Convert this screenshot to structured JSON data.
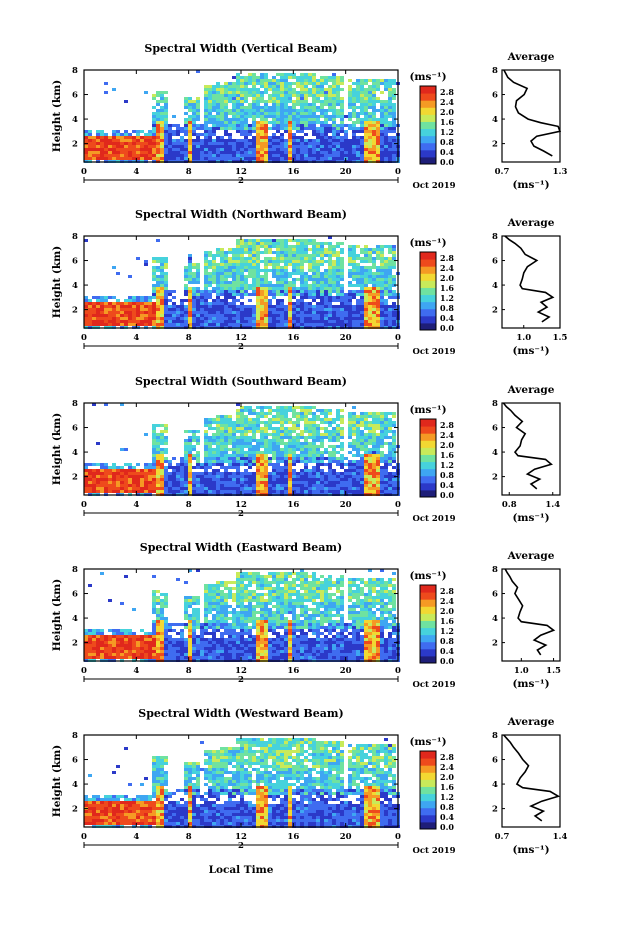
{
  "colors": {
    "scale": [
      "#1e1e78",
      "#2b39c8",
      "#3f6cf0",
      "#3ea6f2",
      "#46d2dc",
      "#6fe2a0",
      "#c8ea5a",
      "#f2d832",
      "#f59a24",
      "#ee4a1c",
      "#e0281c"
    ],
    "avg_line": "#000000"
  },
  "chart_data": [
    {
      "type": "heatmap",
      "title": "Spectral Width (Vertical Beam)",
      "ylabel": "Height (km)",
      "xlabel": "",
      "x_ticks": [
        "0",
        "4",
        "8",
        "12",
        "16",
        "20",
        "0"
      ],
      "x_sub": "2",
      "date_label": "Oct 2019",
      "y_ticks": [
        "2",
        "4",
        "6",
        "8"
      ],
      "ylim": [
        0.5,
        8
      ],
      "xlim": [
        0,
        24
      ],
      "colorbar_label": "(ms⁻¹)",
      "colorbar_ticks": [
        "0.0",
        "0.4",
        "0.8",
        "1.2",
        "1.6",
        "2.0",
        "2.4",
        "2.8"
      ],
      "avg_title": "Average",
      "avg_x_ticks": [
        "0.7",
        "1.3"
      ],
      "avg_xlim": [
        0.7,
        1.3
      ],
      "avg_ylim": [
        0.5,
        8
      ],
      "avg_xlabel": "(ms⁻¹)",
      "avg_x": [
        1.22,
        1.13,
        1.03,
        1.0,
        1.06,
        1.3,
        1.28,
        1.1,
        0.97,
        0.87,
        0.84,
        0.85,
        0.93,
        0.96,
        0.82,
        0.76,
        0.74,
        0.72
      ],
      "avg_y": [
        1.0,
        1.4,
        1.8,
        2.2,
        2.6,
        3.0,
        3.4,
        3.7,
        4.0,
        4.5,
        5.0,
        5.5,
        6.0,
        6.5,
        7.0,
        7.4,
        7.7,
        8.0
      ]
    },
    {
      "type": "heatmap",
      "title": "Spectral Width (Northward Beam)",
      "ylabel": "Height (km)",
      "xlabel": "",
      "x_ticks": [
        "0",
        "4",
        "8",
        "12",
        "16",
        "20",
        "0"
      ],
      "x_sub": "2",
      "date_label": "Oct 2019",
      "y_ticks": [
        "2",
        "4",
        "6",
        "8"
      ],
      "ylim": [
        0.5,
        8
      ],
      "xlim": [
        0,
        24
      ],
      "colorbar_label": "(ms⁻¹)",
      "colorbar_ticks": [
        "0.0",
        "0.4",
        "0.8",
        "1.2",
        "1.6",
        "2.0",
        "2.4",
        "2.8"
      ],
      "avg_title": "Average",
      "avg_x_ticks": [
        "1.0",
        "1.5"
      ],
      "avg_xlim": [
        0.7,
        1.5
      ],
      "avg_ylim": [
        0.5,
        8
      ],
      "avg_xlabel": "(ms⁻¹)",
      "avg_x": [
        1.25,
        1.35,
        1.2,
        1.32,
        1.24,
        1.4,
        1.3,
        0.98,
        0.95,
        0.98,
        1.0,
        1.05,
        1.18,
        1.02,
        0.96,
        0.88,
        0.8,
        0.74
      ],
      "avg_y": [
        1.0,
        1.4,
        1.8,
        2.2,
        2.6,
        3.0,
        3.4,
        3.7,
        4.0,
        4.5,
        5.0,
        5.5,
        6.0,
        6.5,
        7.0,
        7.4,
        7.7,
        8.0
      ]
    },
    {
      "type": "heatmap",
      "title": "Spectral Width (Southward Beam)",
      "ylabel": "Height (km)",
      "xlabel": "",
      "x_ticks": [
        "0",
        "4",
        "8",
        "12",
        "16",
        "20",
        "0"
      ],
      "x_sub": "2",
      "date_label": "Oct 2019",
      "y_ticks": [
        "2",
        "4",
        "6",
        "8"
      ],
      "ylim": [
        0.5,
        8
      ],
      "xlim": [
        0,
        24
      ],
      "colorbar_label": "(ms⁻¹)",
      "colorbar_ticks": [
        "0.0",
        "0.4",
        "0.8",
        "1.2",
        "1.6",
        "2.0",
        "2.4",
        "2.8"
      ],
      "avg_title": "Average",
      "avg_x_ticks": [
        "0.8",
        "1.4"
      ],
      "avg_xlim": [
        0.7,
        1.5
      ],
      "avg_ylim": [
        0.5,
        8
      ],
      "avg_xlabel": "(ms⁻¹)",
      "avg_x": [
        1.18,
        1.1,
        1.22,
        1.05,
        1.15,
        1.38,
        1.3,
        0.92,
        0.88,
        0.95,
        0.97,
        1.02,
        0.9,
        0.98,
        0.88,
        0.82,
        0.76,
        0.72
      ],
      "avg_y": [
        1.0,
        1.4,
        1.8,
        2.2,
        2.6,
        3.0,
        3.4,
        3.7,
        4.0,
        4.5,
        5.0,
        5.5,
        6.0,
        6.5,
        7.0,
        7.4,
        7.7,
        8.0
      ]
    },
    {
      "type": "heatmap",
      "title": "Spectral Width (Eastward Beam)",
      "ylabel": "Height (km)",
      "xlabel": "",
      "x_ticks": [
        "0",
        "4",
        "8",
        "12",
        "16",
        "20",
        "0"
      ],
      "x_sub": "2",
      "date_label": "Oct 2019",
      "y_ticks": [
        "2",
        "4",
        "6",
        "8"
      ],
      "ylim": [
        0.5,
        8
      ],
      "xlim": [
        0,
        24
      ],
      "colorbar_label": "(ms⁻¹)",
      "colorbar_ticks": [
        "0.0",
        "0.4",
        "0.8",
        "1.2",
        "1.6",
        "2.0",
        "2.4",
        "2.8"
      ],
      "avg_title": "Average",
      "avg_x_ticks": [
        "1.0",
        "1.5"
      ],
      "avg_xlim": [
        0.7,
        1.6
      ],
      "avg_ylim": [
        0.5,
        8
      ],
      "avg_xlabel": "(ms⁻¹)",
      "avg_x": [
        1.3,
        1.25,
        1.38,
        1.2,
        1.3,
        1.5,
        1.4,
        1.0,
        0.95,
        0.98,
        1.02,
        0.96,
        0.9,
        0.94,
        0.86,
        0.82,
        0.78,
        0.75
      ],
      "avg_y": [
        1.0,
        1.4,
        1.8,
        2.2,
        2.6,
        3.0,
        3.4,
        3.7,
        4.0,
        4.5,
        5.0,
        5.5,
        6.0,
        6.5,
        7.0,
        7.4,
        7.7,
        8.0
      ]
    },
    {
      "type": "heatmap",
      "title": "Spectral Width (Westward Beam)",
      "ylabel": "Height (km)",
      "xlabel": "Local Time",
      "x_ticks": [
        "0",
        "4",
        "8",
        "12",
        "16",
        "20",
        "0"
      ],
      "x_sub": "2",
      "date_label": "Oct 2019",
      "y_ticks": [
        "2",
        "4",
        "6",
        "8"
      ],
      "ylim": [
        0.5,
        8
      ],
      "xlim": [
        0,
        24
      ],
      "colorbar_label": "(ms⁻¹)",
      "colorbar_ticks": [
        "0.0",
        "0.4",
        "0.8",
        "1.2",
        "1.6",
        "2.0",
        "2.4",
        "2.8"
      ],
      "avg_title": "Average",
      "avg_x_ticks": [
        "0.7",
        "1.4"
      ],
      "avg_xlim": [
        0.7,
        1.4
      ],
      "avg_ylim": [
        0.5,
        8
      ],
      "avg_xlabel": "(ms⁻¹)",
      "avg_x": [
        1.18,
        1.1,
        1.2,
        1.05,
        1.18,
        1.38,
        1.28,
        0.95,
        0.88,
        0.92,
        0.98,
        1.02,
        0.95,
        0.9,
        0.84,
        0.8,
        0.76,
        0.72
      ],
      "avg_y": [
        1.0,
        1.4,
        1.8,
        2.2,
        2.6,
        3.0,
        3.4,
        3.7,
        4.0,
        4.5,
        5.0,
        5.5,
        6.0,
        6.5,
        7.0,
        7.4,
        7.7,
        8.0
      ]
    }
  ]
}
